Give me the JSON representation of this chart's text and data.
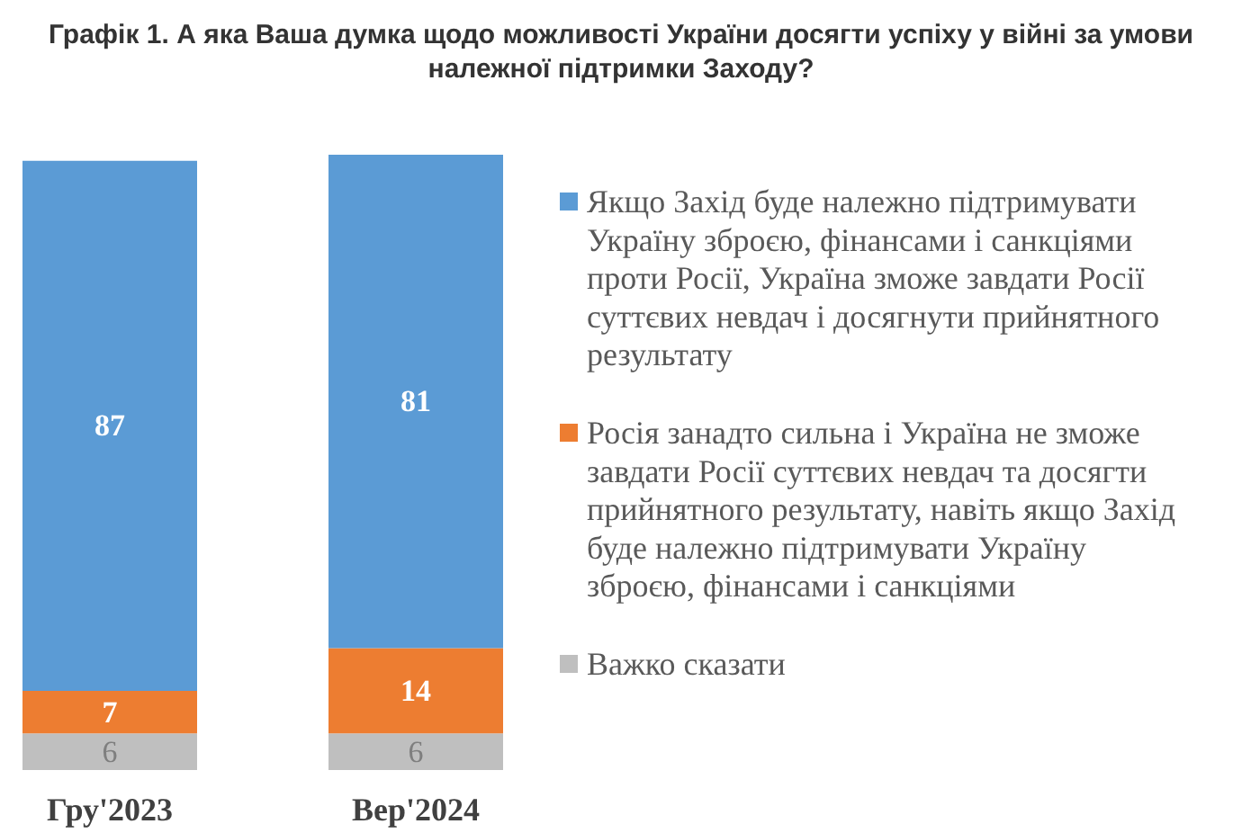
{
  "chart_data": {
    "type": "bar",
    "title": "Графік 1. А яка Ваша думка щодо можливості України досягти успіху у війні за умови належної підтримки Заходу?",
    "categories": [
      "Гру'2023",
      "Вер'2024"
    ],
    "stacked": true,
    "series": [
      {
        "name": "Важко сказати",
        "color": "#bfbfbf",
        "values": [
          6,
          6
        ]
      },
      {
        "name": "Росія занадто сильна і Україна не зможе завдати Росії суттєвих невдач та досягти прийнятного результату, навіть якщо Захід буде належно підтримувати Україну зброєю, фінансами і санкціями",
        "color": "#ed7d31",
        "values": [
          7,
          14
        ]
      },
      {
        "name": "Якщо Захід буде належно підтримувати Україну зброєю, фінансами і санкціями проти Росії, Україна зможе завдати Росії суттєвих невдач і досягнути прийнятного результату",
        "color": "#5b9bd5",
        "values": [
          87,
          81
        ]
      }
    ],
    "data_labels": true,
    "legend": "right"
  }
}
